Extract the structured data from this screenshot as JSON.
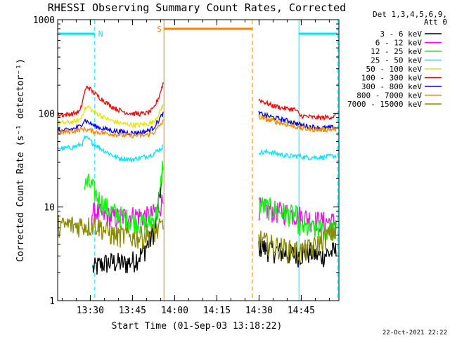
{
  "chart_data": {
    "type": "line",
    "title": "RHESSI Observing Summary Count Rates, Corrected",
    "xlabel": "Start Time (01-Sep-03 13:18:22)",
    "ylabel": "Corrected Count Rate (s⁻¹ detector⁻¹)",
    "yscale": "log",
    "ylim": [
      1,
      1000
    ],
    "xlim_minutes": [
      0,
      100
    ],
    "x_ticks": [
      {
        "t": 11.6,
        "label": "13:30"
      },
      {
        "t": 26.6,
        "label": "13:45"
      },
      {
        "t": 41.6,
        "label": "14:00"
      },
      {
        "t": 56.6,
        "label": "14:15"
      },
      {
        "t": 71.6,
        "label": "14:30"
      },
      {
        "t": 86.6,
        "label": "14:45"
      }
    ],
    "y_ticks": [
      {
        "v": 1,
        "label": "1"
      },
      {
        "v": 10,
        "label": "10"
      },
      {
        "v": 100,
        "label": "100"
      },
      {
        "v": 1000,
        "label": "1000"
      }
    ],
    "legend_header": [
      "Det 1,3,4,5,6,9,",
      "Att 0"
    ],
    "series": [
      {
        "name": "3 - 6 keV",
        "color": "#000000",
        "points": [
          [
            12.5,
            2.2
          ],
          [
            16,
            2.5
          ],
          [
            20,
            2.6
          ],
          [
            24,
            2.5
          ],
          [
            27,
            2.7
          ],
          [
            30,
            3.2
          ],
          [
            33,
            4.5
          ],
          [
            35,
            6.5
          ],
          [
            36.5,
            15
          ],
          [
            37.5,
            24
          ],
          [
            null,
            null
          ],
          [
            71.5,
            3.9
          ],
          [
            74,
            3.6
          ],
          [
            78,
            3.4
          ],
          [
            82,
            3.2
          ],
          [
            85,
            3.1
          ],
          [
            87,
            3.2
          ],
          [
            90,
            3.3
          ],
          [
            93,
            3.0
          ],
          [
            96,
            3.2
          ],
          [
            99,
            3.4
          ]
        ]
      },
      {
        "name": "6 - 12 keV",
        "color": "#ff00ff",
        "points": [
          [
            12,
            8.5
          ],
          [
            14,
            9.0
          ],
          [
            16,
            8.2
          ],
          [
            20,
            7.8
          ],
          [
            24,
            8.0
          ],
          [
            28,
            8.2
          ],
          [
            32,
            8.0
          ],
          [
            34,
            8.5
          ],
          [
            36,
            10
          ],
          [
            37.5,
            12
          ],
          [
            null,
            null
          ],
          [
            71.5,
            10
          ],
          [
            74,
            9.6
          ],
          [
            78,
            9.0
          ],
          [
            82,
            8.7
          ],
          [
            86,
            8.2
          ],
          [
            88,
            7.8
          ],
          [
            90,
            7.5
          ],
          [
            92,
            7.2
          ],
          [
            95,
            7.0
          ],
          [
            99,
            7.0
          ]
        ]
      },
      {
        "name": "12 - 25 keV",
        "color": "#00ff00",
        "points": [
          [
            9.5,
            17
          ],
          [
            11,
            18
          ],
          [
            12.5,
            16
          ],
          [
            14,
            13
          ],
          [
            16,
            11
          ],
          [
            18,
            9.5
          ],
          [
            20,
            8.8
          ],
          [
            22,
            8.2
          ],
          [
            24,
            7.6
          ],
          [
            26,
            7.3
          ],
          [
            28,
            7.0
          ],
          [
            30,
            6.8
          ],
          [
            32,
            6.8
          ],
          [
            34,
            7.4
          ],
          [
            35.5,
            9
          ],
          [
            36.5,
            15
          ],
          [
            37.5,
            32
          ],
          [
            null,
            null
          ],
          [
            71.5,
            11
          ],
          [
            74,
            10
          ],
          [
            78,
            9.2
          ],
          [
            82,
            8.5
          ],
          [
            85,
            8.0
          ],
          [
            86,
            6.2
          ],
          [
            88,
            6.0
          ],
          [
            90,
            5.8
          ],
          [
            93,
            5.9
          ],
          [
            96,
            5.8
          ],
          [
            99,
            5.8
          ]
        ]
      },
      {
        "name": "25 - 50 keV",
        "color": "#00e5ff",
        "points": [
          [
            0,
            43
          ],
          [
            2,
            42
          ],
          [
            4,
            43
          ],
          [
            6,
            44
          ],
          [
            8,
            46
          ],
          [
            9,
            48
          ],
          [
            9.5,
            55
          ],
          [
            11,
            53
          ],
          [
            12.5,
            48
          ],
          [
            14,
            45
          ],
          [
            16,
            41
          ],
          [
            18,
            38
          ],
          [
            20,
            35
          ],
          [
            22,
            33
          ],
          [
            24,
            33
          ],
          [
            26,
            32
          ],
          [
            28,
            33
          ],
          [
            30,
            34
          ],
          [
            32,
            35
          ],
          [
            34,
            37
          ],
          [
            35.5,
            40
          ],
          [
            37.5,
            44
          ],
          [
            null,
            null
          ],
          [
            71.5,
            39
          ],
          [
            73,
            38
          ],
          [
            75,
            39
          ],
          [
            78,
            37
          ],
          [
            80,
            36
          ],
          [
            82,
            35
          ],
          [
            84,
            35
          ],
          [
            86,
            35
          ],
          [
            88,
            34
          ],
          [
            90,
            34
          ],
          [
            92,
            34
          ],
          [
            95,
            34
          ],
          [
            97,
            35
          ],
          [
            99,
            35
          ]
        ]
      },
      {
        "name": "50 - 100 keV",
        "color": "#e8e400",
        "points": [
          [
            0,
            80
          ],
          [
            2,
            79
          ],
          [
            4,
            80
          ],
          [
            6,
            82
          ],
          [
            8,
            86
          ],
          [
            9.5,
            110
          ],
          [
            11,
            118
          ],
          [
            12.5,
            105
          ],
          [
            14,
            100
          ],
          [
            16,
            92
          ],
          [
            18,
            86
          ],
          [
            20,
            82
          ],
          [
            22,
            79
          ],
          [
            24,
            77
          ],
          [
            26,
            76
          ],
          [
            28,
            75
          ],
          [
            30,
            76
          ],
          [
            32,
            77
          ],
          [
            34,
            81
          ],
          [
            36,
            98
          ],
          [
            37.5,
            125
          ],
          [
            null,
            null
          ],
          [
            71.5,
            95
          ],
          [
            74,
            90
          ],
          [
            78,
            85
          ],
          [
            82,
            81
          ],
          [
            85,
            78
          ],
          [
            86,
            73
          ],
          [
            88,
            72
          ],
          [
            90,
            70
          ],
          [
            92,
            69
          ],
          [
            95,
            69
          ],
          [
            99,
            70
          ]
        ]
      },
      {
        "name": "100 - 300 keV",
        "color": "#ff0000",
        "points": [
          [
            0,
            97
          ],
          [
            2,
            96
          ],
          [
            4,
            98
          ],
          [
            6,
            100
          ],
          [
            8,
            105
          ],
          [
            9.5,
            165
          ],
          [
            10.5,
            195
          ],
          [
            12.5,
            170
          ],
          [
            14,
            155
          ],
          [
            16,
            140
          ],
          [
            18,
            125
          ],
          [
            20,
            115
          ],
          [
            22,
            108
          ],
          [
            24,
            103
          ],
          [
            26,
            100
          ],
          [
            28,
            99
          ],
          [
            30,
            99
          ],
          [
            32,
            101
          ],
          [
            34,
            110
          ],
          [
            36,
            150
          ],
          [
            37.5,
            210
          ],
          [
            null,
            null
          ],
          [
            71.5,
            140
          ],
          [
            74,
            130
          ],
          [
            76,
            122
          ],
          [
            78,
            118
          ],
          [
            80,
            114
          ],
          [
            82,
            112
          ],
          [
            84,
            111
          ],
          [
            85,
            107
          ],
          [
            86,
            95
          ],
          [
            88,
            93
          ],
          [
            90,
            91
          ],
          [
            92,
            90
          ],
          [
            94,
            90
          ],
          [
            96,
            91
          ],
          [
            99,
            93
          ]
        ]
      },
      {
        "name": "300 - 800 keV",
        "color": "#0000ff",
        "points": [
          [
            0,
            66
          ],
          [
            2,
            65
          ],
          [
            4,
            67
          ],
          [
            6,
            69
          ],
          [
            8,
            73
          ],
          [
            9.5,
            85
          ],
          [
            11,
            80
          ],
          [
            13,
            74
          ],
          [
            15,
            70
          ],
          [
            18,
            67
          ],
          [
            20,
            65
          ],
          [
            22,
            64
          ],
          [
            24,
            63
          ],
          [
            26,
            62
          ],
          [
            28,
            62
          ],
          [
            30,
            63
          ],
          [
            32,
            65
          ],
          [
            34,
            70
          ],
          [
            36,
            85
          ],
          [
            37.5,
            100
          ],
          [
            null,
            null
          ],
          [
            71.5,
            100
          ],
          [
            74,
            95
          ],
          [
            77,
            90
          ],
          [
            80,
            86
          ],
          [
            82,
            83
          ],
          [
            84,
            80
          ],
          [
            86,
            76
          ],
          [
            88,
            74
          ],
          [
            90,
            72
          ],
          [
            92,
            71
          ],
          [
            94,
            70
          ],
          [
            96,
            70
          ],
          [
            99,
            71
          ]
        ]
      },
      {
        "name": "800 - 7000 keV",
        "color": "#ff8000",
        "points": [
          [
            0,
            62
          ],
          [
            2,
            63
          ],
          [
            4,
            64
          ],
          [
            6,
            65
          ],
          [
            8,
            67
          ],
          [
            9.5,
            68
          ],
          [
            11,
            66
          ],
          [
            13,
            64
          ],
          [
            16,
            62
          ],
          [
            20,
            60
          ],
          [
            24,
            58
          ],
          [
            28,
            58
          ],
          [
            30,
            58
          ],
          [
            32,
            59
          ],
          [
            34,
            62
          ],
          [
            36,
            72
          ],
          [
            37.5,
            82
          ],
          [
            null,
            null
          ],
          [
            71.5,
            92
          ],
          [
            74,
            86
          ],
          [
            77,
            82
          ],
          [
            80,
            78
          ],
          [
            82,
            75
          ],
          [
            84,
            73
          ],
          [
            86,
            70
          ],
          [
            88,
            68
          ],
          [
            90,
            68
          ],
          [
            92,
            67
          ],
          [
            95,
            67
          ],
          [
            99,
            68
          ]
        ]
      },
      {
        "name": "7000 - 15000 keV",
        "color": "#8b8b00",
        "points": [
          [
            0,
            6.6
          ],
          [
            2,
            6.2
          ],
          [
            4,
            6.6
          ],
          [
            6,
            6.3
          ],
          [
            8,
            6.6
          ],
          [
            9.5,
            6.5
          ],
          [
            11,
            6.3
          ],
          [
            13,
            6.6
          ],
          [
            15,
            6.3
          ],
          [
            17,
            5.6
          ],
          [
            19,
            5.2
          ],
          [
            21,
            5.0
          ],
          [
            23,
            5.0
          ],
          [
            25,
            5.0
          ],
          [
            27,
            4.8
          ],
          [
            29,
            4.8
          ],
          [
            31,
            5.0
          ],
          [
            33,
            5.2
          ],
          [
            35,
            5.5
          ],
          [
            37.5,
            6.4
          ],
          [
            null,
            null
          ],
          [
            71.5,
            4.6
          ],
          [
            74,
            4.2
          ],
          [
            77,
            3.9
          ],
          [
            80,
            3.7
          ],
          [
            82,
            3.5
          ],
          [
            84,
            3.5
          ],
          [
            86,
            3.4
          ],
          [
            88,
            3.5
          ],
          [
            90,
            3.6
          ],
          [
            92,
            3.9
          ],
          [
            94,
            4.5
          ],
          [
            96,
            5.0
          ],
          [
            98,
            5.5
          ],
          [
            99,
            5.5
          ]
        ]
      }
    ],
    "flags": [
      {
        "label": "N",
        "color": "#00e5ff",
        "type": "night",
        "start": 0,
        "end": 13.2
      },
      {
        "label": "",
        "color": "#00e5ff",
        "type": "night",
        "start": 85.8,
        "end": 99.6
      },
      {
        "label": "S",
        "color": "#ff8000",
        "type": "saa",
        "start": 37.8,
        "end": 69.2
      }
    ],
    "timestamp": "22-Oct-2021 22:22"
  }
}
